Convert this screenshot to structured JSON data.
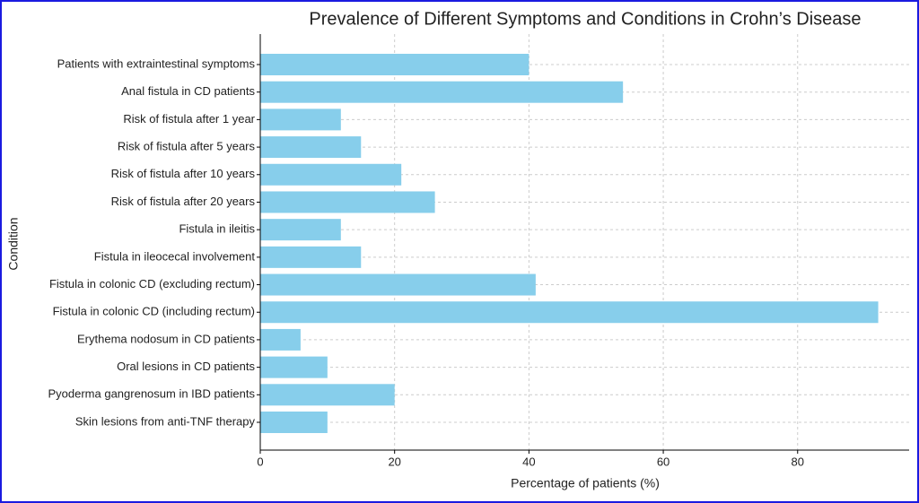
{
  "chart_data": {
    "type": "bar",
    "orientation": "horizontal",
    "title": "Prevalence of Different Symptoms and Conditions in Crohn’s Disease",
    "x_label": "Percentage of patients (%)",
    "y_label": "Condition",
    "categories": [
      "Patients with extraintestinal symptoms",
      "Anal fistula in CD patients",
      "Risk of fistula after 1 year",
      "Risk of fistula after 5 years",
      "Risk of fistula after 10 years",
      "Risk of fistula after 20 years",
      "Fistula in ileitis",
      "Fistula in ileocecal involvement",
      "Fistula in colonic CD (excluding rectum)",
      "Fistula in colonic CD (including rectum)",
      "Erythema nodosum in CD patients",
      "Oral lesions in CD patients",
      "Pyoderma gangrenosum in IBD patients",
      "Skin lesions from anti-TNF therapy"
    ],
    "values": [
      40,
      54,
      12,
      15,
      21,
      26,
      12,
      15,
      41,
      92,
      6,
      10,
      20,
      10
    ],
    "color": "#87ceeb",
    "xlim": [
      0,
      96.6
    ],
    "xticks": [
      0,
      20,
      40,
      60,
      80
    ],
    "grid": true
  }
}
